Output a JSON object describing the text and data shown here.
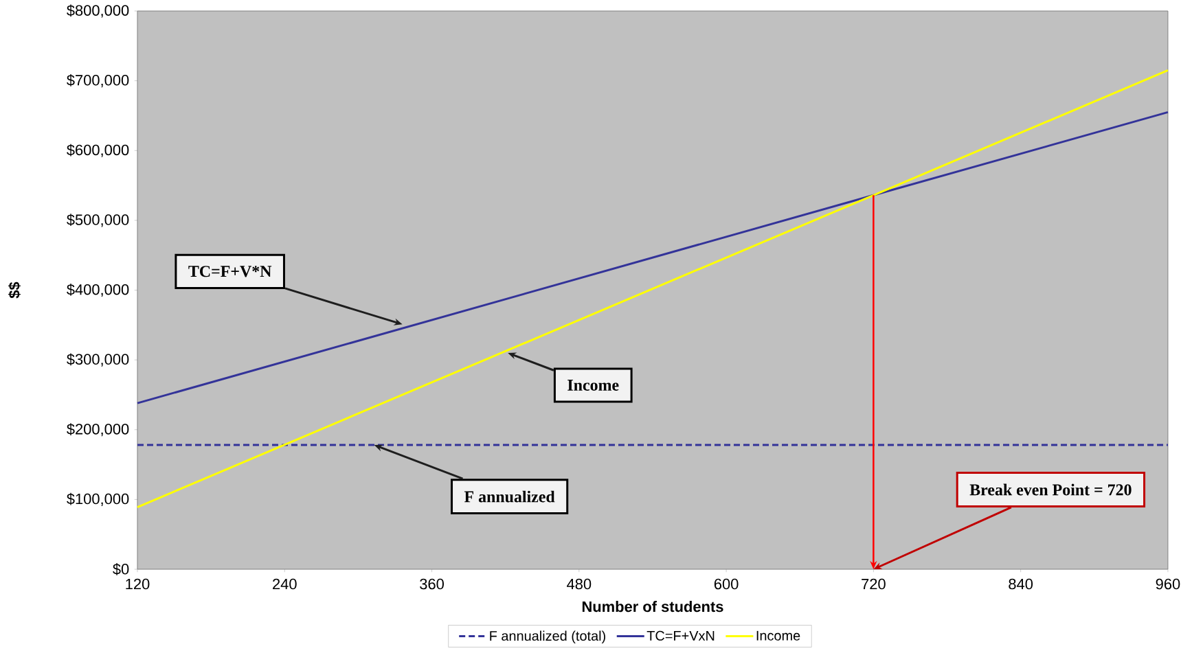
{
  "chart_data": {
    "type": "line",
    "xlabel": "Number of students",
    "ylabel": "$$",
    "x": [
      120,
      720,
      960
    ],
    "series": [
      {
        "name": "F annualized (total)",
        "color": "#333399",
        "line_style": "dashed",
        "values": [
          178000,
          178000,
          178000
        ]
      },
      {
        "name": "TC=F+VxN",
        "color": "#333399",
        "line_style": "solid",
        "values": [
          238000,
          536000,
          655000
        ]
      },
      {
        "name": "Income",
        "color": "#ffff00",
        "line_style": "solid",
        "values": [
          89000,
          536000,
          715000
        ]
      }
    ],
    "xlim": [
      120,
      960
    ],
    "xticks": [
      120,
      240,
      360,
      480,
      600,
      720,
      840,
      960
    ],
    "ylim": [
      0,
      800000
    ],
    "yticks": [
      {
        "value": 0,
        "label": "$0"
      },
      {
        "value": 100000,
        "label": "$100,000"
      },
      {
        "value": 200000,
        "label": "$200,000"
      },
      {
        "value": 300000,
        "label": "$300,000"
      },
      {
        "value": 400000,
        "label": "$400,000"
      },
      {
        "value": 500000,
        "label": "$500,000"
      },
      {
        "value": 600000,
        "label": "$600,000"
      },
      {
        "value": 700000,
        "label": "$700,000"
      },
      {
        "value": 800000,
        "label": "$800,000"
      }
    ],
    "annotations": [
      {
        "text": "TC=F+V*N",
        "x": 336,
        "y": 351000
      },
      {
        "text": "Income",
        "x": 422,
        "y": 310000
      },
      {
        "text": "F annualized",
        "x": 313,
        "y": 178000
      },
      "Break even Point = 720"
    ],
    "ref_lines": [
      {
        "axis": "x",
        "value": 720,
        "color": "#ff0000"
      }
    ],
    "grid": false,
    "legend": "bottom",
    "marker": "none"
  }
}
